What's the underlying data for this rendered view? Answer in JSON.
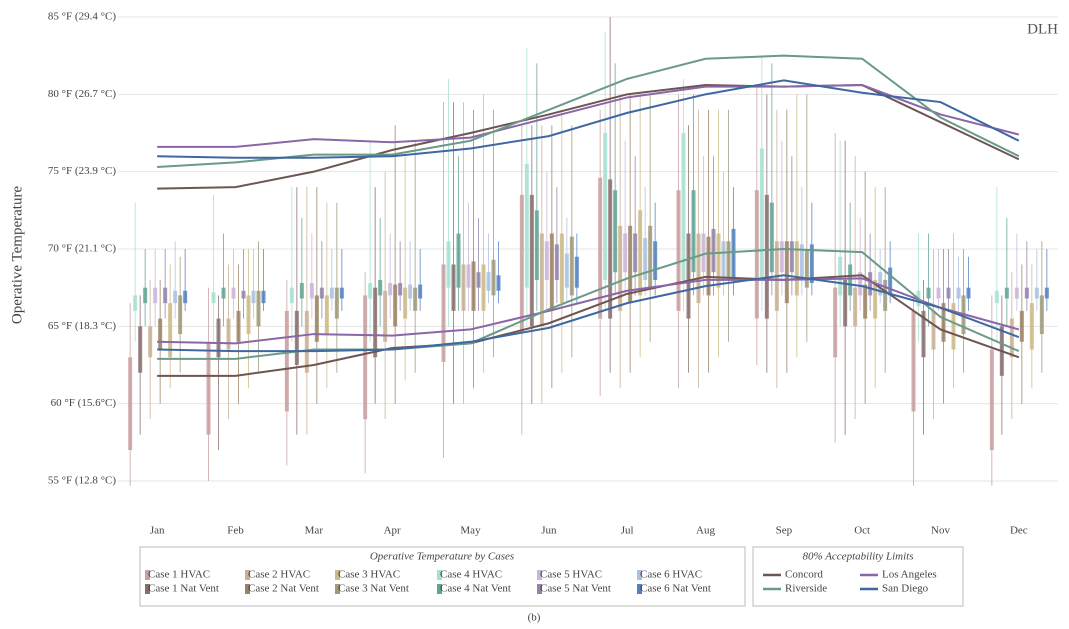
{
  "chart_data": {
    "type": "box",
    "tag": "DLH",
    "ylabel": "Operative Temperature",
    "caption": "(b)",
    "legend_cases_title": "Operative Temperature by Cases",
    "legend_limits_title": "80% Acceptability Limits",
    "categories": [
      "Jan",
      "Feb",
      "Mar",
      "Apr",
      "May",
      "Jun",
      "Jul",
      "Aug",
      "Sep",
      "Oct",
      "Nov",
      "Dec"
    ],
    "ylim": [
      53,
      86
    ],
    "yticks": [
      {
        "value": 55,
        "label": "55 °F (12.8 °C)"
      },
      {
        "value": 60,
        "label": "60 °F (15.6°C)"
      },
      {
        "value": 65,
        "label": "65 °F (18.3 °C)"
      },
      {
        "value": 70,
        "label": "70 °F (21.1 °C)"
      },
      {
        "value": 75,
        "label": "75 °F (23.9 °C)"
      },
      {
        "value": 80,
        "label": "80 °F (26.7 °C)"
      },
      {
        "value": 85,
        "label": "85 °F (29.4 °C)"
      }
    ],
    "grid": true,
    "series": [
      {
        "name": "Case 1 HVAC",
        "color": "#c9a0a0",
        "values": [
          [
            54.7,
            57,
            63,
            66.5
          ],
          [
            55,
            58,
            64,
            67.5
          ],
          [
            56,
            59.5,
            66,
            68
          ],
          [
            55.5,
            59,
            67,
            68.5
          ],
          [
            56.5,
            62.7,
            69,
            79.5
          ],
          [
            58,
            64.6,
            73.5,
            78
          ],
          [
            60.5,
            65.5,
            74.6,
            79
          ],
          [
            61,
            66,
            73.8,
            80
          ],
          [
            62.5,
            65.5,
            73.8,
            80.5
          ],
          [
            57.5,
            63,
            67.5,
            77.5
          ],
          [
            54.7,
            59.5,
            66,
            67
          ],
          [
            54.7,
            57,
            63.5,
            67
          ]
        ]
      },
      {
        "name": "Case 1 Nat Vent",
        "color": "#8a6e6e",
        "values": [
          [
            58,
            62,
            65,
            67
          ],
          [
            57,
            63,
            65.5,
            67
          ],
          [
            58,
            62.5,
            66,
            74
          ],
          [
            60,
            63,
            67.5,
            74
          ],
          [
            60,
            66,
            69,
            79.5
          ],
          [
            60,
            65,
            73.5,
            78
          ],
          [
            62,
            65.5,
            74.5,
            85
          ],
          [
            62,
            65.5,
            71,
            78
          ],
          [
            62,
            65.5,
            73.5,
            80
          ],
          [
            58,
            65,
            68,
            77
          ],
          [
            58,
            63,
            66,
            68
          ],
          [
            58,
            61.8,
            65,
            67
          ]
        ]
      },
      {
        "name": "Case 2 HVAC",
        "color": "#c9b094",
        "values": [
          [
            59,
            63,
            65,
            68
          ],
          [
            59,
            63.5,
            65.5,
            69
          ],
          [
            58,
            62,
            66,
            74
          ],
          [
            59,
            64,
            67.3,
            75
          ],
          [
            60,
            66,
            69,
            79.5
          ],
          [
            60,
            65,
            71,
            78
          ],
          [
            61,
            66,
            71.5,
            80
          ],
          [
            61,
            66.5,
            71,
            79
          ],
          [
            61,
            66,
            70.5,
            79
          ],
          [
            59,
            65,
            67.5,
            76
          ],
          [
            59,
            63.5,
            66,
            70
          ],
          [
            59,
            63,
            65.5,
            68.5
          ]
        ]
      },
      {
        "name": "Case 2 Nat Vent",
        "color": "#9c8264",
        "values": [
          [
            60,
            63.5,
            65.5,
            68
          ],
          [
            60,
            64,
            66,
            69
          ],
          [
            60,
            64,
            67,
            74
          ],
          [
            60,
            65,
            67.7,
            78
          ],
          [
            61,
            66,
            69.2,
            79
          ],
          [
            61,
            66,
            71,
            78
          ],
          [
            62,
            66.5,
            71.5,
            80
          ],
          [
            62,
            67,
            70.8,
            79
          ],
          [
            62,
            66.5,
            70.5,
            79
          ],
          [
            60,
            65.5,
            67.7,
            75
          ],
          [
            60,
            64,
            66.5,
            70
          ],
          [
            60,
            64,
            66,
            69
          ]
        ]
      },
      {
        "name": "Case 3 HVAC",
        "color": "#cbbb86",
        "values": [
          [
            61,
            63,
            66.5,
            69
          ],
          [
            61,
            64.5,
            67,
            70
          ],
          [
            61,
            64.5,
            67,
            73
          ],
          [
            61.5,
            65.5,
            67.5,
            76
          ],
          [
            62,
            66,
            69,
            80
          ],
          [
            62,
            66.5,
            71,
            79
          ],
          [
            63,
            67,
            72.5,
            80
          ],
          [
            63,
            67.5,
            71,
            79
          ],
          [
            63,
            67,
            70.5,
            80
          ],
          [
            61,
            65.5,
            68,
            74
          ],
          [
            61,
            63.5,
            66.5,
            71
          ],
          [
            61,
            63.5,
            66.5,
            69
          ]
        ]
      },
      {
        "name": "Case 3 Nat Vent",
        "color": "#a09a7a",
        "values": [
          [
            62,
            64.5,
            67,
            69.5
          ],
          [
            62,
            65,
            67.3,
            70.5
          ],
          [
            62,
            65.5,
            67.5,
            73
          ],
          [
            62,
            66,
            67.5,
            77
          ],
          [
            63,
            67,
            69.3,
            79
          ],
          [
            63,
            67,
            70.8,
            78
          ],
          [
            64,
            67.5,
            71.5,
            80
          ],
          [
            64,
            68,
            70.5,
            79
          ],
          [
            64,
            67.5,
            70,
            80
          ],
          [
            62,
            66,
            68,
            74
          ],
          [
            62,
            64.5,
            67,
            70
          ],
          [
            62,
            64.5,
            67,
            70.5
          ]
        ]
      },
      {
        "name": "Case 4 HVAC",
        "color": "#a6e0d2",
        "values": [
          [
            64,
            66,
            67,
            73
          ],
          [
            64,
            66.5,
            67.2,
            73.5
          ],
          [
            64,
            66.5,
            67.5,
            74
          ],
          [
            64,
            66.8,
            67.8,
            77
          ],
          [
            65,
            67.5,
            70.5,
            81
          ],
          [
            65,
            67.5,
            75.5,
            83
          ],
          [
            66,
            68,
            77.5,
            84
          ],
          [
            66,
            68,
            77.5,
            81
          ],
          [
            66,
            68,
            76.5,
            82.5
          ],
          [
            65,
            67,
            69.5,
            77
          ],
          [
            64,
            66.3,
            67.3,
            71
          ],
          [
            64,
            66.5,
            67.3,
            74
          ]
        ]
      },
      {
        "name": "Case 4 Nat Vent",
        "color": "#62a494",
        "values": [
          [
            65,
            66.5,
            67.5,
            70
          ],
          [
            65,
            66.8,
            67.5,
            71
          ],
          [
            65,
            66.8,
            67.8,
            72
          ],
          [
            65,
            67,
            68,
            72
          ],
          [
            66,
            67.5,
            71,
            76
          ],
          [
            66,
            68,
            72.5,
            82
          ],
          [
            67,
            68.5,
            73.8,
            82
          ],
          [
            67,
            68.5,
            73.8,
            80
          ],
          [
            67,
            68.5,
            73,
            82
          ],
          [
            66,
            67,
            69,
            73
          ],
          [
            65,
            66.8,
            67.5,
            71
          ],
          [
            65,
            66.8,
            67.5,
            72
          ]
        ]
      },
      {
        "name": "Case 5 HVAC",
        "color": "#cbb4da",
        "values": [
          [
            65,
            66.5,
            67.5,
            70
          ],
          [
            65.5,
            66.8,
            67.5,
            70
          ],
          [
            65.5,
            66.8,
            67.8,
            71
          ],
          [
            65.5,
            67,
            67.8,
            71
          ],
          [
            66,
            67.5,
            69,
            73
          ],
          [
            66,
            68,
            70.5,
            75
          ],
          [
            67,
            68.5,
            71,
            77
          ],
          [
            67,
            68.5,
            71,
            76
          ],
          [
            67,
            68.5,
            70.5,
            77
          ],
          [
            66,
            67,
            68.5,
            72
          ],
          [
            66,
            66.8,
            67.5,
            70
          ],
          [
            66,
            66.8,
            67.5,
            71
          ]
        ]
      },
      {
        "name": "Case 5 Nat Vent",
        "color": "#9282ac",
        "values": [
          [
            65.5,
            66.5,
            67.5,
            70
          ],
          [
            65.5,
            66.8,
            67.3,
            70
          ],
          [
            65.5,
            66.8,
            67.5,
            70.5
          ],
          [
            66,
            67,
            67.8,
            70.5
          ],
          [
            66,
            67.5,
            68.5,
            72
          ],
          [
            66.5,
            68,
            70.3,
            74
          ],
          [
            67,
            68.5,
            71,
            76
          ],
          [
            67,
            68.5,
            71.3,
            76
          ],
          [
            67,
            68.5,
            70.5,
            76
          ],
          [
            66,
            67,
            68.5,
            71
          ],
          [
            66,
            66.8,
            67.5,
            70
          ],
          [
            66,
            66.8,
            67.5,
            70.5
          ]
        ]
      },
      {
        "name": "Case 6 HVAC",
        "color": "#a9c1e2",
        "values": [
          [
            65.5,
            66.5,
            67.3,
            70.5
          ],
          [
            65.5,
            66.5,
            67.3,
            70
          ],
          [
            66,
            66.8,
            67.5,
            70
          ],
          [
            66,
            66.8,
            67.7,
            70.5
          ],
          [
            66.5,
            67.3,
            68.5,
            71
          ],
          [
            66.5,
            67.5,
            69.7,
            72
          ],
          [
            67,
            68,
            70.7,
            74
          ],
          [
            67,
            68,
            70.5,
            75
          ],
          [
            67,
            68,
            70.3,
            74
          ],
          [
            66.5,
            67,
            68.5,
            70
          ],
          [
            66,
            66.8,
            67.5,
            69.5
          ],
          [
            66,
            66.8,
            67.5,
            70
          ]
        ]
      },
      {
        "name": "Case 6 Nat Vent",
        "color": "#5282c2",
        "values": [
          [
            66,
            66.5,
            67.3,
            70
          ],
          [
            66,
            66.5,
            67.3,
            70
          ],
          [
            66,
            66.8,
            67.5,
            70
          ],
          [
            66,
            66.8,
            67.7,
            70
          ],
          [
            66.5,
            67.3,
            68.3,
            70.5
          ],
          [
            66.5,
            67.5,
            69.5,
            71
          ],
          [
            67,
            68,
            70.5,
            73
          ],
          [
            67,
            68,
            71.3,
            74
          ],
          [
            67,
            67.8,
            70.3,
            73
          ],
          [
            66.5,
            67,
            68.8,
            70.5
          ],
          [
            66,
            66.8,
            67.5,
            69.5
          ],
          [
            66,
            66.8,
            67.5,
            70
          ]
        ]
      }
    ],
    "limits": [
      {
        "name": "Concord",
        "color": "#6e5552",
        "upper": [
          73.9,
          74.0,
          75.0,
          76.4,
          77.5,
          78.7,
          80.0,
          80.6,
          80.5,
          80.6,
          78.2,
          75.8
        ],
        "lower": [
          61.8,
          61.8,
          62.5,
          63.6,
          63.9,
          65.2,
          67.1,
          68.2,
          68.0,
          68.3,
          64.8,
          63.0
        ]
      },
      {
        "name": "Los Angeles",
        "color": "#8a66a8",
        "upper": [
          76.6,
          76.6,
          77.1,
          76.9,
          77.2,
          78.5,
          79.8,
          80.5,
          80.5,
          80.6,
          78.7,
          77.4
        ],
        "lower": [
          64.0,
          63.9,
          64.5,
          64.4,
          64.8,
          66.0,
          67.3,
          68.0,
          68.0,
          68.1,
          66.2,
          64.8
        ]
      },
      {
        "name": "Riverside",
        "color": "#6a9a88",
        "upper": [
          75.3,
          75.6,
          76.1,
          76.1,
          77.0,
          79.0,
          81.0,
          82.3,
          82.5,
          82.3,
          78.5,
          76.0
        ],
        "lower": [
          62.9,
          62.9,
          63.5,
          63.5,
          63.9,
          66.1,
          68.1,
          69.7,
          70.0,
          69.8,
          65.6,
          63.4
        ]
      },
      {
        "name": "San Diego",
        "color": "#3e68a2",
        "upper": [
          76.0,
          75.9,
          75.9,
          76.0,
          76.5,
          77.3,
          78.8,
          80.0,
          80.9,
          80.1,
          79.5,
          77.0
        ],
        "lower": [
          63.5,
          63.4,
          63.4,
          63.5,
          64.0,
          64.9,
          66.5,
          67.6,
          68.3,
          67.6,
          66.2,
          64.3
        ]
      }
    ]
  }
}
